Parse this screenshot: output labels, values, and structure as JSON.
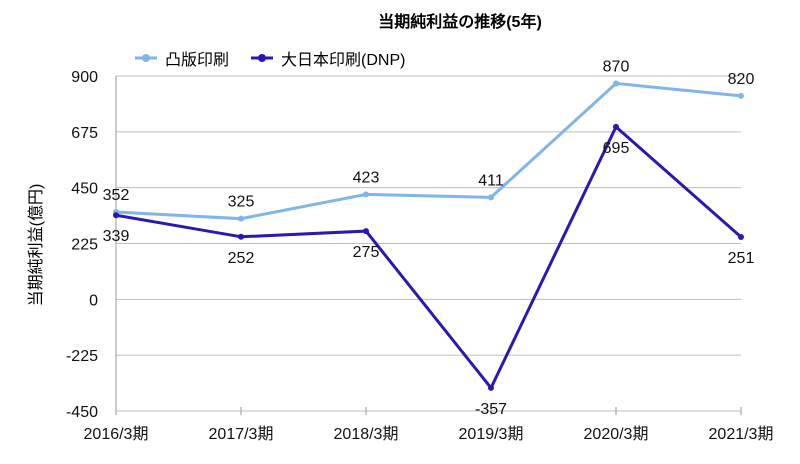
{
  "chart_data": {
    "type": "line",
    "title": "当期純利益の推移(5年)",
    "xlabel": "",
    "ylabel": "当期純利益(億円)",
    "categories": [
      "2016/3期",
      "2017/3期",
      "2018/3期",
      "2019/3期",
      "2020/3期",
      "2021/3期"
    ],
    "ylim": [
      -450,
      900
    ],
    "yticks": [
      900,
      675,
      450,
      225,
      0,
      -225,
      -450
    ],
    "grid": true,
    "legend_position": "top-left",
    "series": [
      {
        "name": "凸版印刷",
        "color": "#7fb5e8",
        "values": [
          352,
          325,
          423,
          411,
          870,
          820
        ],
        "label_pos": [
          "above",
          "above",
          "above",
          "above",
          "above",
          "above"
        ]
      },
      {
        "name": "大日本印刷(DNP)",
        "color": "#2a18b2",
        "values": [
          339,
          252,
          275,
          -357,
          695,
          251
        ],
        "label_pos": [
          "below",
          "below",
          "below",
          "below",
          "below",
          "below"
        ]
      }
    ]
  }
}
